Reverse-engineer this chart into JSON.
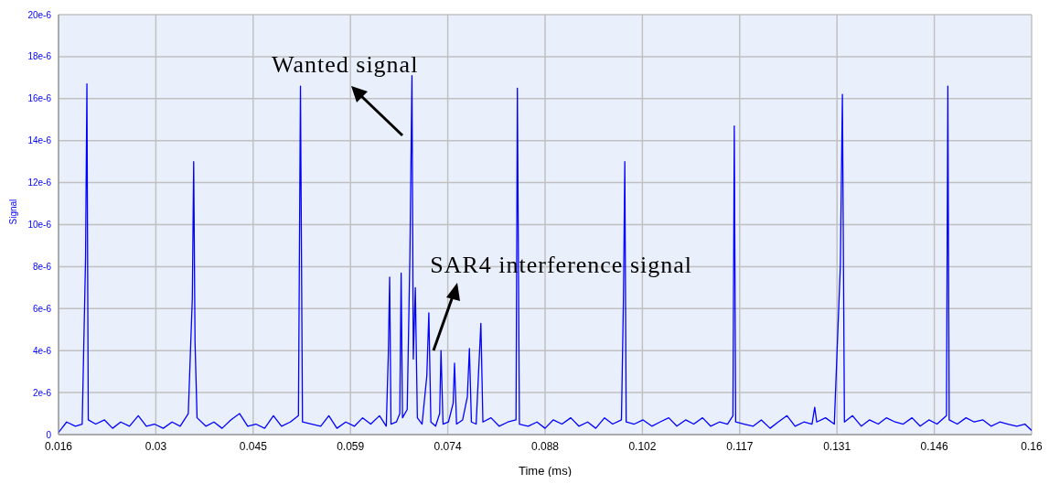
{
  "chart_data": {
    "type": "line",
    "xlabel": "Time (ms)",
    "ylabel": "Signal",
    "annotations": [
      "Wanted signal",
      {
        "text": "SAR4 interference signal",
        "x": 0.0726,
        "y": 4e-06
      }
    ],
    "xlim": [
      0.016,
      0.16
    ],
    "xticks": [
      {
        "value": 0.016,
        "label": "0.016"
      },
      {
        "value": 0.0304,
        "label": "0.03"
      },
      {
        "value": 0.0448,
        "label": "0.045"
      },
      {
        "value": 0.0592,
        "label": "0.059"
      },
      {
        "value": 0.0736,
        "label": "0.074"
      },
      {
        "value": 0.088,
        "label": "0.088"
      },
      {
        "value": 0.1024,
        "label": "0.102"
      },
      {
        "value": 0.1168,
        "label": "0.117"
      },
      {
        "value": 0.1312,
        "label": "0.131"
      },
      {
        "value": 0.1456,
        "label": "0.146"
      },
      {
        "value": 0.16,
        "label": "0.16"
      }
    ],
    "ylim": [
      0,
      2e-05
    ],
    "yticks": [
      {
        "value": 0,
        "label": "0"
      },
      {
        "value": 2e-06,
        "label": "2e-6"
      },
      {
        "value": 4e-06,
        "label": "4e-6"
      },
      {
        "value": 6e-06,
        "label": "6e-6"
      },
      {
        "value": 8e-06,
        "label": "8e-6"
      },
      {
        "value": 1e-05,
        "label": "10e-6"
      },
      {
        "value": 1.2e-05,
        "label": "12e-6"
      },
      {
        "value": 1.4e-05,
        "label": "14e-6"
      },
      {
        "value": 1.6e-05,
        "label": "16e-6"
      },
      {
        "value": 1.8e-05,
        "label": "18e-6"
      },
      {
        "value": 2e-05,
        "label": "20e-6"
      }
    ],
    "grid": true,
    "marker": "none",
    "line_style": "solid",
    "x": [
      0.016,
      0.0172,
      0.0185,
      0.0195,
      0.02,
      0.0202,
      0.0204,
      0.0215,
      0.0228,
      0.024,
      0.0252,
      0.0265,
      0.0278,
      0.029,
      0.0302,
      0.0315,
      0.0328,
      0.034,
      0.0352,
      0.0358,
      0.036,
      0.0362,
      0.0365,
      0.0378,
      0.039,
      0.0402,
      0.0415,
      0.0428,
      0.044,
      0.0452,
      0.0465,
      0.0478,
      0.049,
      0.0503,
      0.0515,
      0.0518,
      0.0521,
      0.0535,
      0.0548,
      0.056,
      0.0572,
      0.0585,
      0.0598,
      0.061,
      0.0622,
      0.0635,
      0.0645,
      0.0648,
      0.065,
      0.0652,
      0.066,
      0.0665,
      0.0667,
      0.0669,
      0.0676,
      0.068,
      0.0683,
      0.0685,
      0.0688,
      0.0691,
      0.0698,
      0.0705,
      0.0708,
      0.0711,
      0.0718,
      0.0724,
      0.0726,
      0.0729,
      0.0737,
      0.0744,
      0.0746,
      0.0749,
      0.0758,
      0.0765,
      0.0768,
      0.0771,
      0.0778,
      0.0785,
      0.0788,
      0.08,
      0.0812,
      0.0825,
      0.0837,
      0.0839,
      0.0842,
      0.0855,
      0.0868,
      0.088,
      0.0892,
      0.0905,
      0.0918,
      0.093,
      0.0943,
      0.0955,
      0.0968,
      0.098,
      0.0993,
      0.0996,
      0.0998,
      0.1,
      0.1012,
      0.1025,
      0.1038,
      0.105,
      0.1063,
      0.1075,
      0.1088,
      0.11,
      0.1113,
      0.1125,
      0.1138,
      0.115,
      0.1158,
      0.116,
      0.1162,
      0.1175,
      0.1188,
      0.12,
      0.1213,
      0.1225,
      0.1238,
      0.125,
      0.1263,
      0.1275,
      0.1279,
      0.1282,
      0.1295,
      0.1308,
      0.1317,
      0.132,
      0.1323,
      0.1335,
      0.1348,
      0.136,
      0.1373,
      0.1385,
      0.1398,
      0.141,
      0.1423,
      0.1435,
      0.1448,
      0.146,
      0.1474,
      0.1476,
      0.1478,
      0.149,
      0.1503,
      0.1515,
      0.1528,
      0.154,
      0.1553,
      0.1565,
      0.1578,
      0.159,
      0.16
    ],
    "series": [
      {
        "color": "#0000ff",
        "values": [
          1e-07,
          6e-07,
          4e-07,
          5e-07,
          8.4e-06,
          1.67e-05,
          7e-07,
          5e-07,
          7e-07,
          3e-07,
          6e-07,
          4e-07,
          9e-07,
          4e-07,
          5e-07,
          3e-07,
          6e-07,
          4e-07,
          1e-06,
          6.5e-06,
          1.3e-05,
          4.4e-06,
          8e-07,
          4e-07,
          6e-07,
          3e-07,
          7e-07,
          1e-06,
          4e-07,
          5e-07,
          3e-07,
          9e-07,
          4e-07,
          6e-07,
          9e-07,
          1.66e-05,
          6e-07,
          5e-07,
          4e-07,
          9e-07,
          3e-07,
          6e-07,
          4e-07,
          8e-07,
          5e-07,
          9e-07,
          4e-07,
          3.8e-06,
          7.5e-06,
          5e-07,
          6e-07,
          1e-06,
          7.7e-06,
          8e-07,
          1.2e-06,
          8.6e-06,
          1.71e-05,
          3.6e-06,
          7e-06,
          8e-07,
          5e-07,
          2.8e-06,
          5.8e-06,
          6e-07,
          4e-07,
          1e-06,
          4e-06,
          5e-07,
          6e-07,
          1.5e-06,
          3.4e-06,
          5e-07,
          7e-07,
          1.8e-06,
          4.1e-06,
          6e-07,
          5e-07,
          5.3e-06,
          6e-07,
          8e-07,
          4e-07,
          6e-07,
          7e-07,
          1.65e-05,
          5e-07,
          4e-07,
          6e-07,
          3e-07,
          7e-07,
          5e-07,
          8e-07,
          4e-07,
          6e-07,
          3e-07,
          8e-07,
          5e-07,
          7e-07,
          6.5e-06,
          1.3e-05,
          6e-07,
          5e-07,
          7e-07,
          4e-07,
          6e-07,
          8e-07,
          4e-07,
          7e-07,
          5e-07,
          8e-07,
          4e-07,
          6e-07,
          5e-07,
          9e-07,
          1.47e-05,
          6e-07,
          5e-07,
          4e-07,
          7e-07,
          3e-07,
          6e-07,
          9e-07,
          4e-07,
          6e-07,
          5e-07,
          1.3e-06,
          6e-07,
          8e-07,
          5e-07,
          8.1e-06,
          1.62e-05,
          6e-07,
          9e-07,
          4e-07,
          7e-07,
          5e-07,
          8e-07,
          6e-07,
          5e-07,
          8e-07,
          4e-07,
          7e-07,
          5e-07,
          9e-07,
          1.66e-05,
          7e-07,
          5e-07,
          8e-07,
          6e-07,
          7e-07,
          4e-07,
          6e-07,
          5e-07,
          4e-07,
          5e-07,
          2e-07
        ]
      }
    ]
  }
}
